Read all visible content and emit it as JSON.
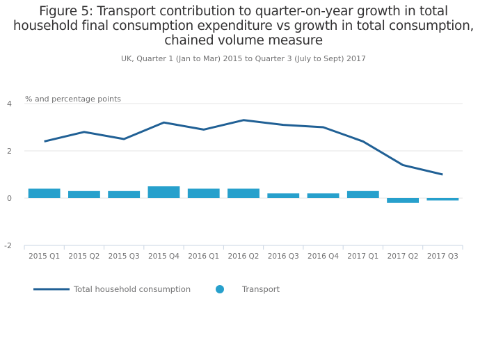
{
  "chart_data": {
    "type": "bar",
    "title": "Figure 5: Transport contribution to quarter-on-year growth in total household final consumption expenditure vs growth in total consumption, chained volume measure",
    "title_lines": [
      "Figure 5: Transport contribution to quarter-on-year growth in total",
      "household final consumption expenditure vs growth in total consumption,",
      "chained volume measure"
    ],
    "subtitle": "UK, Quarter 1 (Jan to Mar) 2015 to Quarter 3 (July to Sept) 2017",
    "ylabel": "% and percentage points",
    "xlabel": "",
    "ylim": [
      -2,
      4
    ],
    "yticks": [
      -2,
      0,
      2,
      4
    ],
    "grid": true,
    "legend_position": "bottom-left",
    "categories": [
      "2015 Q1",
      "2015 Q2",
      "2015 Q3",
      "2015 Q4",
      "2016 Q1",
      "2016 Q2",
      "2016 Q3",
      "2016 Q4",
      "2017 Q1",
      "2017 Q2",
      "2017 Q3"
    ],
    "series": [
      {
        "name": "Total household consumption",
        "type": "line",
        "color": "#206095",
        "values": [
          2.4,
          2.8,
          2.5,
          3.2,
          2.9,
          3.3,
          3.1,
          3.0,
          2.4,
          1.4,
          1.0
        ]
      },
      {
        "name": "Transport",
        "type": "bar",
        "color": "#27a0cc",
        "values": [
          0.4,
          0.3,
          0.3,
          0.5,
          0.4,
          0.4,
          0.2,
          0.2,
          0.3,
          -0.2,
          -0.1
        ]
      }
    ]
  }
}
